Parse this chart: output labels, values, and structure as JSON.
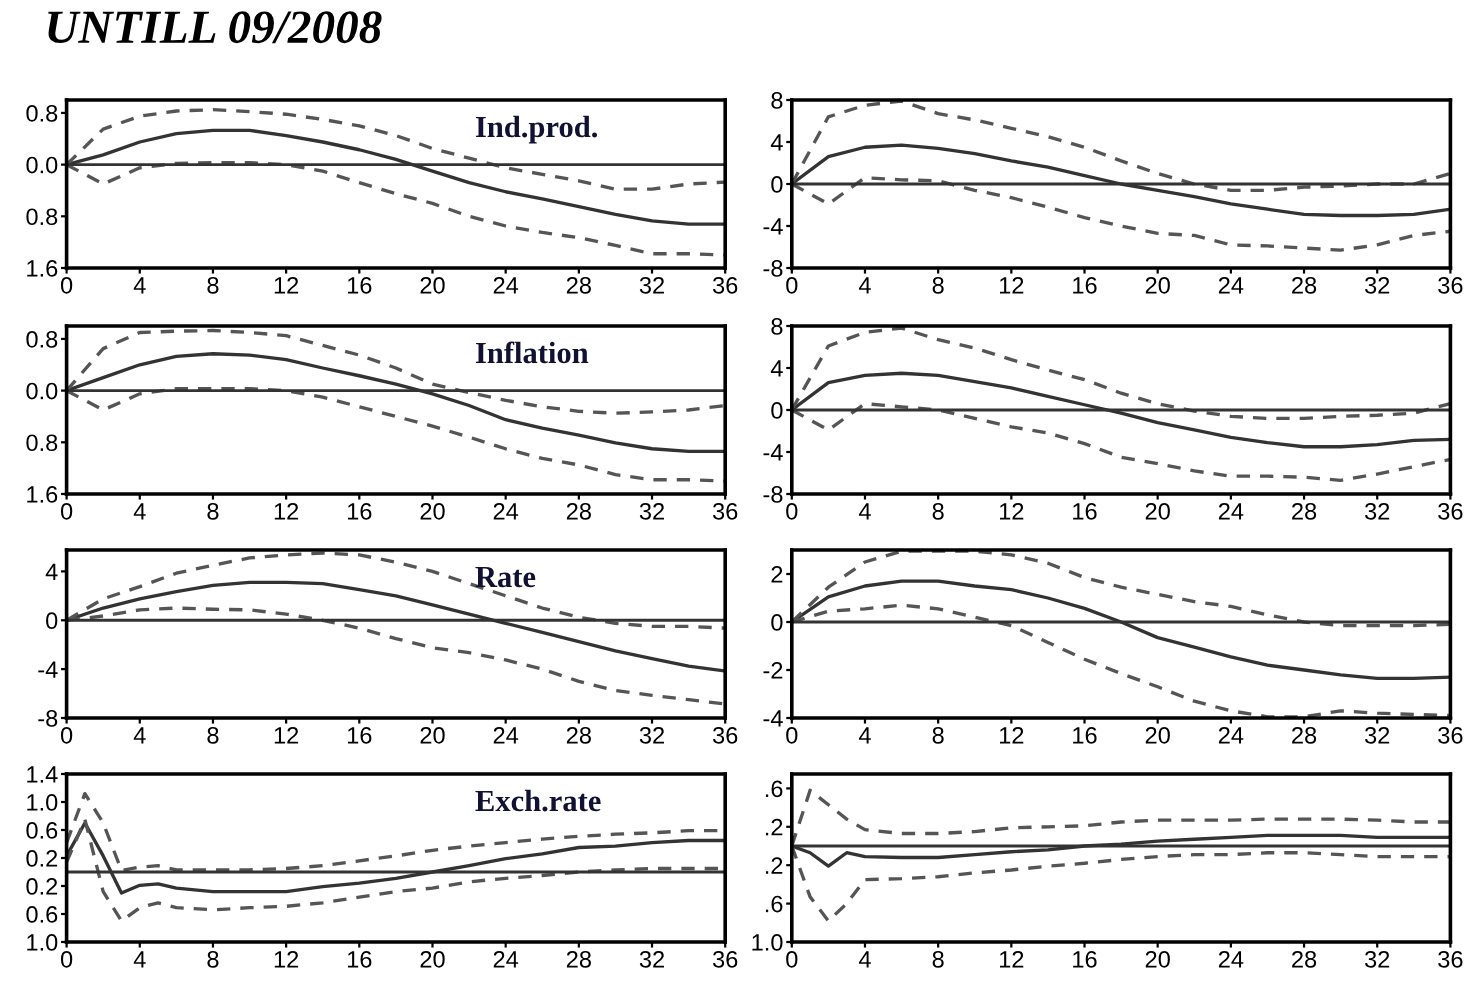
{
  "chart_data": [
    {
      "type": "line",
      "title": "UNTILL 09/2008",
      "annotations": [
        "Ind.prod."
      ],
      "x": [
        0,
        2,
        4,
        6,
        8,
        10,
        12,
        14,
        16,
        18,
        20,
        22,
        24,
        26,
        28,
        30,
        32,
        34,
        36
      ],
      "xlim": [
        0,
        36
      ],
      "xticks": [
        0,
        4,
        8,
        12,
        16,
        20,
        24,
        28,
        32,
        36
      ],
      "ylim": [
        -1.6,
        1.0
      ],
      "yticks": [
        {
          "value": 0.8,
          "label": "0.8"
        },
        {
          "value": 0.0,
          "label": "0.0"
        },
        {
          "value": -0.8,
          "label": "0.8"
        },
        {
          "value": -1.6,
          "label": "1.6"
        }
      ],
      "grid": false,
      "ref_lines": [
        {
          "axis": "y",
          "value": 0,
          "color": "#333333"
        }
      ],
      "series": [
        {
          "color": "#333333",
          "line_style": "solid",
          "values": [
            0,
            0.15,
            0.35,
            0.48,
            0.53,
            0.53,
            0.45,
            0.35,
            0.23,
            0.08,
            -0.1,
            -0.28,
            -0.42,
            -0.53,
            -0.65,
            -0.77,
            -0.87,
            -0.92,
            -0.92
          ]
        },
        {
          "color": "#555555",
          "line_style": "dashed",
          "values": [
            0,
            0.55,
            0.75,
            0.83,
            0.85,
            0.82,
            0.78,
            0.7,
            0.6,
            0.45,
            0.25,
            0.1,
            -0.05,
            -0.15,
            -0.25,
            -0.38,
            -0.38,
            -0.3,
            -0.27
          ]
        },
        {
          "color": "#555555",
          "line_style": "dashed",
          "values": [
            0,
            -0.3,
            -0.05,
            0.02,
            0.03,
            0.03,
            0,
            -0.1,
            -0.28,
            -0.45,
            -0.6,
            -0.8,
            -0.95,
            -1.05,
            -1.13,
            -1.25,
            -1.38,
            -1.38,
            -1.4
          ]
        }
      ]
    },
    {
      "type": "line",
      "x": [
        0,
        2,
        4,
        6,
        8,
        10,
        12,
        14,
        16,
        18,
        20,
        22,
        24,
        26,
        28,
        30,
        32,
        34,
        36
      ],
      "xlim": [
        0,
        36
      ],
      "xticks": [
        0,
        4,
        8,
        12,
        16,
        20,
        24,
        28,
        32,
        36
      ],
      "ylim": [
        -8,
        8
      ],
      "yticks": [
        8,
        4,
        0,
        -4,
        -8
      ],
      "grid": false,
      "ref_lines": [
        {
          "axis": "y",
          "value": 0,
          "color": "#333333"
        }
      ],
      "series": [
        {
          "color": "#333333",
          "line_style": "solid",
          "values": [
            0,
            2.6,
            3.5,
            3.7,
            3.4,
            2.9,
            2.2,
            1.6,
            0.8,
            0,
            -0.6,
            -1.2,
            -1.9,
            -2.4,
            -2.9,
            -3.0,
            -3.0,
            -2.9,
            -2.4
          ]
        },
        {
          "color": "#555555",
          "line_style": "dashed",
          "values": [
            0,
            6.4,
            7.5,
            7.9,
            6.7,
            6.1,
            5.3,
            4.5,
            3.5,
            2.2,
            1,
            0,
            -0.6,
            -0.6,
            -0.3,
            -0.2,
            0,
            0,
            1
          ]
        },
        {
          "color": "#555555",
          "line_style": "dashed",
          "values": [
            0,
            -1.9,
            0.6,
            0.4,
            0.3,
            -0.6,
            -1.3,
            -2.2,
            -3.2,
            -4,
            -4.7,
            -4.9,
            -5.8,
            -5.9,
            -6.1,
            -6.3,
            -5.8,
            -4.9,
            -4.5
          ]
        }
      ]
    },
    {
      "type": "line",
      "annotations": [
        "Inflation"
      ],
      "x": [
        0,
        2,
        4,
        6,
        8,
        10,
        12,
        14,
        16,
        18,
        20,
        22,
        24,
        26,
        28,
        30,
        32,
        34,
        36
      ],
      "xlim": [
        0,
        36
      ],
      "xticks": [
        0,
        4,
        8,
        12,
        16,
        20,
        24,
        28,
        32,
        36
      ],
      "ylim": [
        -1.6,
        1.0
      ],
      "yticks": [
        {
          "value": 0.8,
          "label": "0.8"
        },
        {
          "value": 0.0,
          "label": "0.0"
        },
        {
          "value": -0.8,
          "label": "0.8"
        },
        {
          "value": -1.6,
          "label": "1.6"
        }
      ],
      "grid": false,
      "ref_lines": [
        {
          "axis": "y",
          "value": 0,
          "color": "#333333"
        }
      ],
      "series": [
        {
          "color": "#333333",
          "line_style": "solid",
          "values": [
            0,
            0.2,
            0.4,
            0.53,
            0.57,
            0.55,
            0.48,
            0.35,
            0.23,
            0.1,
            -0.05,
            -0.23,
            -0.45,
            -0.58,
            -0.69,
            -0.81,
            -0.9,
            -0.94,
            -0.94
          ]
        },
        {
          "color": "#555555",
          "line_style": "dashed",
          "values": [
            0,
            0.65,
            0.9,
            0.92,
            0.93,
            0.9,
            0.85,
            0.7,
            0.55,
            0.35,
            0.1,
            -0.03,
            -0.15,
            -0.25,
            -0.32,
            -0.35,
            -0.33,
            -0.3,
            -0.23
          ]
        },
        {
          "color": "#555555",
          "line_style": "dashed",
          "values": [
            0,
            -0.3,
            -0.05,
            0.03,
            0.03,
            0.03,
            0,
            -0.1,
            -0.25,
            -0.4,
            -0.55,
            -0.72,
            -0.9,
            -1.05,
            -1.15,
            -1.3,
            -1.38,
            -1.38,
            -1.4
          ]
        }
      ]
    },
    {
      "type": "line",
      "x": [
        0,
        2,
        4,
        6,
        8,
        10,
        12,
        14,
        16,
        18,
        20,
        22,
        24,
        26,
        28,
        30,
        32,
        34,
        36
      ],
      "xlim": [
        0,
        36
      ],
      "xticks": [
        0,
        4,
        8,
        12,
        16,
        20,
        24,
        28,
        32,
        36
      ],
      "ylim": [
        -8,
        8
      ],
      "yticks": [
        8,
        4,
        0,
        -4,
        -8
      ],
      "grid": false,
      "ref_lines": [
        {
          "axis": "y",
          "value": 0,
          "color": "#333333"
        }
      ],
      "series": [
        {
          "color": "#333333",
          "line_style": "solid",
          "values": [
            0,
            2.6,
            3.3,
            3.5,
            3.3,
            2.7,
            2.1,
            1.3,
            0.5,
            -0.3,
            -1.2,
            -1.9,
            -2.6,
            -3.1,
            -3.5,
            -3.5,
            -3.3,
            -2.9,
            -2.8
          ]
        },
        {
          "color": "#555555",
          "line_style": "dashed",
          "values": [
            0,
            6.1,
            7.4,
            7.8,
            6.7,
            5.9,
            4.8,
            3.8,
            2.9,
            1.6,
            0.6,
            -0.1,
            -0.6,
            -0.8,
            -0.8,
            -0.6,
            -0.5,
            -0.3,
            0.6
          ]
        },
        {
          "color": "#555555",
          "line_style": "dashed",
          "values": [
            0,
            -1.9,
            0.6,
            0.3,
            0,
            -0.8,
            -1.6,
            -2.2,
            -3.2,
            -4.5,
            -5.1,
            -5.8,
            -6.3,
            -6.3,
            -6.4,
            -6.7,
            -6.1,
            -5.4,
            -4.7
          ]
        }
      ]
    },
    {
      "type": "line",
      "annotations": [
        "Rate"
      ],
      "x": [
        0,
        2,
        4,
        6,
        8,
        10,
        12,
        14,
        16,
        18,
        20,
        22,
        24,
        26,
        28,
        30,
        32,
        34,
        36
      ],
      "xlim": [
        0,
        36
      ],
      "xticks": [
        0,
        4,
        8,
        12,
        16,
        20,
        24,
        28,
        32,
        36
      ],
      "ylim": [
        -8,
        5.75
      ],
      "yticks": [
        4,
        0,
        -4,
        -8
      ],
      "grid": false,
      "ref_lines": [
        {
          "axis": "y",
          "value": 0,
          "color": "#333333"
        }
      ],
      "series": [
        {
          "color": "#333333",
          "line_style": "solid",
          "values": [
            0,
            1.0,
            1.75,
            2.35,
            2.85,
            3.1,
            3.1,
            3,
            2.5,
            2,
            1.25,
            0.5,
            -0.25,
            -1,
            -1.75,
            -2.5,
            -3.15,
            -3.75,
            -4.15
          ]
        },
        {
          "color": "#555555",
          "line_style": "dashed",
          "values": [
            0,
            1.75,
            2.75,
            3.85,
            4.5,
            5.1,
            5.35,
            5.5,
            5.35,
            4.75,
            4,
            3,
            2,
            1,
            0.25,
            -0.25,
            -0.5,
            -0.5,
            -0.65
          ]
        },
        {
          "color": "#555555",
          "line_style": "dashed",
          "values": [
            0,
            0.35,
            0.85,
            1,
            0.9,
            0.85,
            0.5,
            0,
            -0.65,
            -1.5,
            -2.25,
            -2.65,
            -3.25,
            -4,
            -5,
            -5.75,
            -6.15,
            -6.5,
            -6.85
          ]
        }
      ]
    },
    {
      "type": "line",
      "x": [
        0,
        2,
        4,
        6,
        8,
        10,
        12,
        14,
        16,
        18,
        20,
        22,
        24,
        26,
        28,
        30,
        32,
        34,
        36
      ],
      "xlim": [
        0,
        36
      ],
      "xticks": [
        0,
        4,
        8,
        12,
        16,
        20,
        24,
        28,
        32,
        36
      ],
      "ylim": [
        -4,
        3
      ],
      "yticks": [
        2,
        0,
        -2,
        -4
      ],
      "grid": false,
      "ref_lines": [
        {
          "axis": "y",
          "value": 0,
          "color": "#333333"
        }
      ],
      "series": [
        {
          "color": "#333333",
          "line_style": "solid",
          "values": [
            0,
            1.05,
            1.5,
            1.7,
            1.7,
            1.5,
            1.35,
            1,
            0.57,
            0,
            -0.65,
            -1.05,
            -1.45,
            -1.8,
            -2,
            -2.2,
            -2.35,
            -2.35,
            -2.3
          ]
        },
        {
          "color": "#555555",
          "line_style": "dashed",
          "values": [
            0,
            1.45,
            2.5,
            2.95,
            2.95,
            2.95,
            2.8,
            2.45,
            1.85,
            1.45,
            1.15,
            0.85,
            0.65,
            0.3,
            0,
            -0.15,
            -0.15,
            -0.15,
            -0.1
          ]
        },
        {
          "color": "#555555",
          "line_style": "dashed",
          "values": [
            0,
            0.45,
            0.55,
            0.7,
            0.55,
            0.2,
            -0.15,
            -0.85,
            -1.55,
            -2.15,
            -2.7,
            -3.3,
            -3.7,
            -3.95,
            -3.95,
            -3.7,
            -3.8,
            -3.85,
            -3.9
          ]
        }
      ]
    },
    {
      "type": "line",
      "annotations": [
        "Exch.rate"
      ],
      "x": [
        0,
        1,
        2,
        3,
        4,
        5,
        6,
        8,
        10,
        12,
        14,
        16,
        18,
        20,
        22,
        24,
        26,
        28,
        30,
        32,
        34,
        36
      ],
      "xlim": [
        0,
        36
      ],
      "xticks": [
        0,
        4,
        8,
        12,
        16,
        20,
        24,
        28,
        32,
        36
      ],
      "ylim": [
        -1.0,
        1.4
      ],
      "yticks": [
        {
          "value": 1.4,
          "label": "1.4"
        },
        {
          "value": 1.0,
          "label": "1.0"
        },
        {
          "value": 0.6,
          "label": "0.6"
        },
        {
          "value": 0.2,
          "label": "0.2"
        },
        {
          "value": -0.2,
          "label": "0.2"
        },
        {
          "value": -0.6,
          "label": "0.6"
        },
        {
          "value": -1.0,
          "label": "1.0"
        }
      ],
      "grid": false,
      "ref_lines": [
        {
          "axis": "y",
          "value": 0,
          "color": "#333333"
        }
      ],
      "series": [
        {
          "color": "#333333",
          "line_style": "solid",
          "values": [
            0.23,
            0.7,
            0.23,
            -0.3,
            -0.19,
            -0.17,
            -0.23,
            -0.28,
            -0.28,
            -0.28,
            -0.21,
            -0.16,
            -0.09,
            0,
            0.09,
            0.19,
            0.26,
            0.35,
            0.37,
            0.42,
            0.45,
            0.45
          ]
        },
        {
          "color": "#555555",
          "line_style": "dashed",
          "values": [
            0.42,
            1.12,
            0.7,
            0.02,
            0.07,
            0.09,
            0.03,
            0.03,
            0.03,
            0.05,
            0.09,
            0.16,
            0.23,
            0.31,
            0.37,
            0.42,
            0.47,
            0.51,
            0.54,
            0.56,
            0.59,
            0.59
          ]
        },
        {
          "color": "#555555",
          "line_style": "dashed",
          "values": [
            0.14,
            0.75,
            -0.28,
            -0.7,
            -0.51,
            -0.44,
            -0.51,
            -0.54,
            -0.51,
            -0.49,
            -0.44,
            -0.36,
            -0.28,
            -0.23,
            -0.14,
            -0.09,
            -0.05,
            0,
            0.03,
            0.05,
            0.05,
            0.05
          ]
        }
      ]
    },
    {
      "type": "line",
      "x": [
        0,
        1,
        2,
        3,
        4,
        6,
        8,
        10,
        12,
        14,
        16,
        18,
        20,
        22,
        24,
        26,
        28,
        30,
        32,
        34,
        36
      ],
      "xlim": [
        0,
        36
      ],
      "xticks": [
        0,
        4,
        8,
        12,
        16,
        20,
        24,
        28,
        32,
        36
      ],
      "ylim": [
        -1.0,
        0.75
      ],
      "yticks": [
        {
          "value": 0.6,
          "label": ".6"
        },
        {
          "value": 0.2,
          "label": ".2"
        },
        {
          "value": -0.2,
          "label": ".2"
        },
        {
          "value": -0.6,
          "label": ".6"
        },
        {
          "value": -1.0,
          "label": "1.0"
        }
      ],
      "grid": false,
      "ref_lines": [
        {
          "axis": "y",
          "value": 0,
          "color": "#333333"
        }
      ],
      "series": [
        {
          "color": "#333333",
          "line_style": "solid",
          "values": [
            0,
            -0.07,
            -0.21,
            -0.07,
            -0.11,
            -0.12,
            -0.12,
            -0.09,
            -0.06,
            -0.04,
            0,
            0.02,
            0.05,
            0.07,
            0.09,
            0.11,
            0.11,
            0.11,
            0.09,
            0.09,
            0.09
          ]
        },
        {
          "color": "#555555",
          "line_style": "dashed",
          "values": [
            0,
            0.58,
            0.43,
            0.28,
            0.17,
            0.13,
            0.13,
            0.15,
            0.19,
            0.2,
            0.21,
            0.25,
            0.27,
            0.27,
            0.27,
            0.28,
            0.28,
            0.28,
            0.27,
            0.25,
            0.25
          ]
        },
        {
          "color": "#555555",
          "line_style": "dashed",
          "values": [
            0,
            -0.53,
            -0.78,
            -0.6,
            -0.35,
            -0.34,
            -0.32,
            -0.28,
            -0.25,
            -0.21,
            -0.18,
            -0.14,
            -0.11,
            -0.09,
            -0.09,
            -0.07,
            -0.07,
            -0.09,
            -0.11,
            -0.11,
            -0.11
          ]
        }
      ]
    }
  ]
}
